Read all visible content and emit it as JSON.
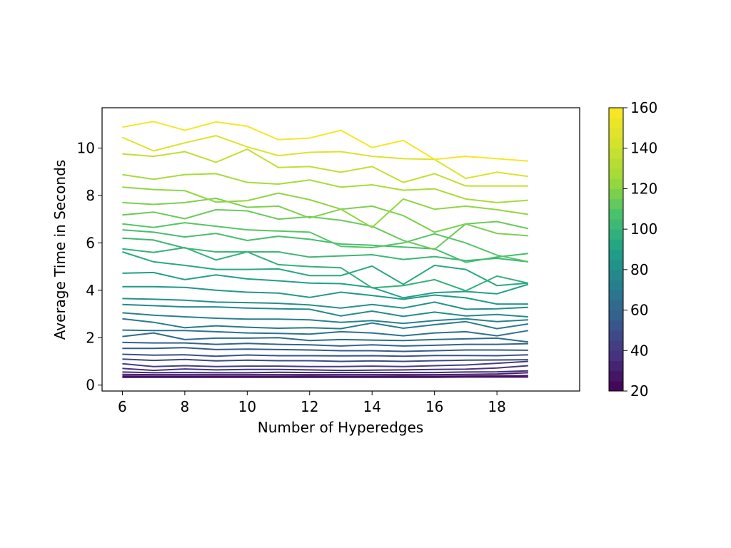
{
  "chart_data": {
    "type": "line",
    "title": "",
    "xlabel": "Number of Hyperedges",
    "ylabel": "Average Time in Seconds",
    "xlim": [
      5.35,
      20.65
    ],
    "ylim": [
      -0.25,
      11.7
    ],
    "xticks": [
      6,
      8,
      10,
      12,
      14,
      16,
      18
    ],
    "yticks": [
      0,
      2,
      4,
      6,
      8,
      10
    ],
    "x": [
      6,
      7,
      8,
      9,
      10,
      11,
      12,
      13,
      14,
      15,
      16,
      17,
      18,
      19
    ],
    "grid": false,
    "legend": "none",
    "colorbar": {
      "label": "",
      "range": [
        20,
        160
      ],
      "ticks": [
        20,
        40,
        60,
        80,
        100,
        120,
        140,
        160
      ],
      "colormap": "viridis"
    },
    "series": [
      {
        "c": 23,
        "values": [
          0.33,
          0.33,
          0.33,
          0.33,
          0.33,
          0.33,
          0.33,
          0.33,
          0.33,
          0.33,
          0.33,
          0.34,
          0.34,
          0.34
        ]
      },
      {
        "c": 27,
        "values": [
          0.38,
          0.37,
          0.37,
          0.37,
          0.37,
          0.37,
          0.38,
          0.37,
          0.37,
          0.38,
          0.37,
          0.38,
          0.39,
          0.4
        ]
      },
      {
        "c": 31,
        "values": [
          0.45,
          0.44,
          0.44,
          0.44,
          0.44,
          0.44,
          0.44,
          0.44,
          0.44,
          0.44,
          0.44,
          0.45,
          0.47,
          0.52
        ]
      },
      {
        "c": 35,
        "values": [
          0.55,
          0.52,
          0.53,
          0.52,
          0.52,
          0.54,
          0.53,
          0.53,
          0.53,
          0.53,
          0.53,
          0.55,
          0.56,
          0.6
        ]
      },
      {
        "c": 39,
        "values": [
          0.7,
          0.62,
          0.68,
          0.64,
          0.66,
          0.66,
          0.64,
          0.62,
          0.63,
          0.64,
          0.66,
          0.67,
          0.72,
          0.82
        ]
      },
      {
        "c": 43,
        "values": [
          0.9,
          0.78,
          0.82,
          0.78,
          0.8,
          0.8,
          0.78,
          0.78,
          0.8,
          0.78,
          0.82,
          0.85,
          0.92,
          1.0
        ]
      },
      {
        "c": 47,
        "values": [
          1.1,
          1.04,
          1.08,
          1.02,
          1.05,
          1.03,
          1.03,
          1.0,
          1.02,
          1.0,
          1.03,
          1.05,
          1.06,
          1.07
        ]
      },
      {
        "c": 51,
        "values": [
          1.3,
          1.26,
          1.28,
          1.22,
          1.27,
          1.24,
          1.24,
          1.23,
          1.24,
          1.22,
          1.25,
          1.25,
          1.24,
          1.28
        ]
      },
      {
        "c": 55,
        "values": [
          1.55,
          1.55,
          1.58,
          1.5,
          1.52,
          1.5,
          1.48,
          1.45,
          1.45,
          1.42,
          1.45,
          1.48,
          1.48,
          1.47
        ]
      },
      {
        "c": 59,
        "values": [
          1.8,
          1.78,
          1.78,
          1.72,
          1.76,
          1.72,
          1.7,
          1.65,
          1.7,
          1.65,
          1.68,
          1.72,
          1.72,
          1.75
        ]
      },
      {
        "c": 63,
        "values": [
          2.05,
          2.2,
          1.92,
          1.98,
          1.98,
          2.0,
          1.88,
          1.92,
          1.9,
          1.88,
          1.92,
          1.95,
          1.98,
          1.82
        ]
      },
      {
        "c": 66,
        "values": [
          2.32,
          2.3,
          2.3,
          2.25,
          2.2,
          2.18,
          2.15,
          2.25,
          2.2,
          2.08,
          2.2,
          2.25,
          2.08,
          2.3
        ]
      },
      {
        "c": 70,
        "values": [
          2.8,
          2.65,
          2.42,
          2.5,
          2.44,
          2.4,
          2.42,
          2.38,
          2.62,
          2.4,
          2.55,
          2.68,
          2.38,
          2.58
        ]
      },
      {
        "c": 74,
        "values": [
          3.05,
          2.95,
          2.88,
          2.82,
          2.78,
          2.78,
          2.75,
          2.65,
          2.72,
          2.6,
          2.72,
          2.8,
          2.68,
          2.75
        ]
      },
      {
        "c": 78,
        "values": [
          3.4,
          3.35,
          3.3,
          3.3,
          3.25,
          3.22,
          3.2,
          2.92,
          3.12,
          2.9,
          3.08,
          2.92,
          2.98,
          2.88
        ]
      },
      {
        "c": 82,
        "values": [
          3.65,
          3.62,
          3.58,
          3.5,
          3.48,
          3.45,
          3.38,
          3.25,
          3.4,
          3.25,
          3.5,
          3.2,
          3.22,
          3.28
        ]
      },
      {
        "c": 86,
        "values": [
          4.15,
          4.15,
          4.12,
          4.0,
          3.92,
          3.88,
          3.7,
          3.92,
          3.78,
          3.62,
          3.8,
          3.68,
          3.42,
          3.42
        ]
      },
      {
        "c": 90,
        "values": [
          4.72,
          4.75,
          4.45,
          4.65,
          4.48,
          4.4,
          4.3,
          4.28,
          4.12,
          3.68,
          3.9,
          3.95,
          3.85,
          4.25
        ]
      },
      {
        "c": 94,
        "values": [
          5.62,
          5.2,
          5.05,
          4.88,
          4.88,
          4.9,
          4.62,
          4.62,
          5.02,
          4.25,
          5.05,
          4.88,
          4.2,
          4.3
        ]
      },
      {
        "c": 98,
        "values": [
          5.75,
          5.6,
          5.8,
          5.28,
          5.62,
          5.08,
          5.0,
          4.95,
          4.1,
          4.2,
          4.45,
          3.98,
          4.6,
          4.3
        ]
      },
      {
        "c": 102,
        "values": [
          6.2,
          6.12,
          5.78,
          5.62,
          5.62,
          5.62,
          5.4,
          5.45,
          5.5,
          5.3,
          5.42,
          5.25,
          5.35,
          5.2
        ]
      },
      {
        "c": 106,
        "values": [
          6.55,
          6.45,
          6.25,
          6.4,
          6.1,
          6.28,
          6.15,
          5.95,
          5.9,
          5.82,
          5.75,
          5.18,
          5.4,
          5.55
        ]
      },
      {
        "c": 110,
        "values": [
          6.8,
          6.65,
          6.85,
          6.7,
          6.55,
          6.5,
          6.45,
          5.85,
          5.8,
          6.0,
          6.38,
          6.0,
          5.48,
          5.2
        ]
      },
      {
        "c": 114,
        "values": [
          7.18,
          7.3,
          7.02,
          7.4,
          7.35,
          7.0,
          7.1,
          6.95,
          6.7,
          6.1,
          5.72,
          6.8,
          6.9,
          6.6
        ]
      },
      {
        "c": 118,
        "values": [
          7.7,
          7.62,
          7.7,
          7.88,
          7.5,
          7.55,
          7.05,
          7.42,
          7.55,
          7.15,
          6.45,
          6.8,
          6.4,
          6.3
        ]
      },
      {
        "c": 122,
        "values": [
          8.35,
          8.25,
          8.2,
          7.72,
          7.78,
          8.1,
          7.82,
          7.42,
          6.65,
          7.85,
          7.42,
          7.55,
          7.4,
          7.2
        ]
      },
      {
        "c": 128,
        "values": [
          8.88,
          8.68,
          8.88,
          8.92,
          8.55,
          8.48,
          8.65,
          8.35,
          8.45,
          8.22,
          8.28,
          7.85,
          7.7,
          7.8
        ]
      },
      {
        "c": 136,
        "values": [
          9.75,
          9.65,
          9.85,
          9.4,
          9.95,
          9.18,
          9.22,
          8.98,
          9.22,
          8.55,
          8.92,
          8.4,
          8.4,
          8.4
        ]
      },
      {
        "c": 146,
        "values": [
          10.45,
          9.88,
          10.22,
          10.52,
          10.05,
          9.68,
          9.82,
          9.85,
          9.65,
          9.55,
          9.52,
          8.72,
          8.98,
          8.8
        ]
      },
      {
        "c": 157,
        "values": [
          10.88,
          11.12,
          10.75,
          11.1,
          10.92,
          10.35,
          10.42,
          10.75,
          10.02,
          10.32,
          9.52,
          9.65,
          9.55,
          9.45
        ]
      }
    ]
  }
}
